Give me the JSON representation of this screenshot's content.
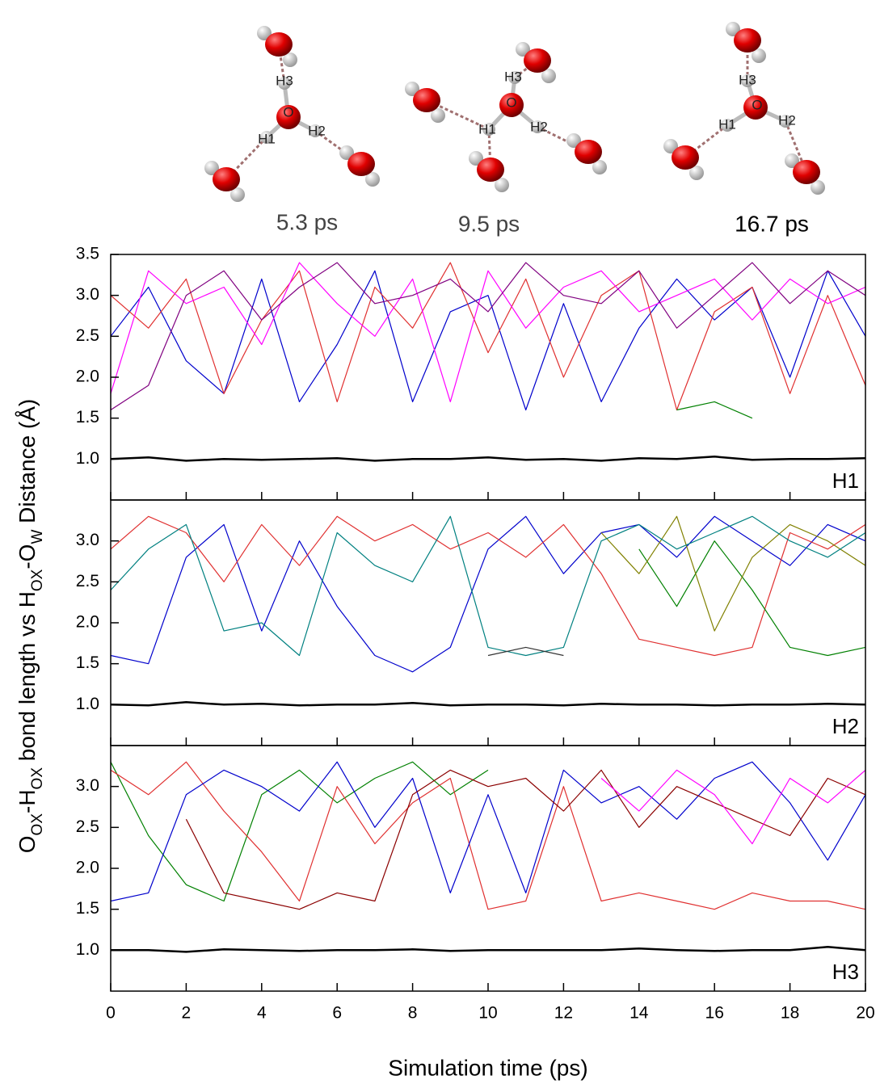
{
  "snapshots": [
    {
      "time": "5.3 ps",
      "labels": [
        "O",
        "H1",
        "H2",
        "H3"
      ]
    },
    {
      "time": "9.5 ps",
      "labels": [
        "O",
        "H1",
        "H2",
        "H3"
      ]
    },
    {
      "time": "16.7 ps",
      "labels": [
        "O",
        "H1",
        "H2",
        "H3"
      ]
    }
  ],
  "chart_data": [
    {
      "type": "line",
      "panel_label": "H1",
      "ylabel": [
        "O",
        "OX",
        "-H",
        "OX",
        " bond length vs H",
        "OX",
        "-O",
        "W",
        " Distance (Å)"
      ],
      "x": [
        0,
        1,
        2,
        3,
        4,
        5,
        6,
        7,
        8,
        9,
        10,
        11,
        12,
        13,
        14,
        15,
        16,
        17,
        18,
        19,
        20
      ],
      "xlim": [
        0,
        20
      ],
      "ylim": [
        0.5,
        3.5
      ],
      "yticks": [
        {
          "value": 1,
          "label": "1.0"
        },
        1.5,
        {
          "value": 2,
          "label": "2.0"
        },
        2.5,
        {
          "value": 3,
          "label": "3.0"
        },
        3.5
      ],
      "series": [
        {
          "color": "#0000cc",
          "values": [
            2.5,
            3.1,
            2.2,
            1.8,
            3.2,
            1.7,
            2.4,
            3.3,
            1.7,
            2.8,
            3.0,
            1.6,
            2.9,
            1.7,
            2.6,
            3.2,
            2.7,
            3.1,
            2.0,
            3.3,
            2.5
          ]
        },
        {
          "color": "#e03030",
          "values": [
            3.0,
            2.6,
            3.2,
            1.8,
            2.7,
            3.3,
            1.7,
            3.1,
            2.6,
            3.4,
            2.3,
            3.2,
            2.0,
            3.0,
            3.3,
            1.6,
            2.8,
            3.1,
            1.8,
            3.0,
            1.9
          ]
        },
        {
          "color": "#ff00ff",
          "values": [
            1.8,
            3.3,
            2.9,
            3.1,
            2.4,
            3.4,
            2.9,
            2.5,
            3.2,
            1.7,
            3.3,
            2.6,
            3.1,
            3.3,
            2.8,
            3.0,
            3.2,
            2.7,
            3.2,
            2.9,
            3.1
          ]
        },
        {
          "color": "#800080",
          "values": [
            1.6,
            1.9,
            3.0,
            3.3,
            2.7,
            3.1,
            3.4,
            2.9,
            3.0,
            3.2,
            2.8,
            3.4,
            3.0,
            2.9,
            3.3,
            2.6,
            3.0,
            3.4,
            2.9,
            3.3,
            3.0
          ]
        },
        {
          "color": "#008000",
          "values": [
            null,
            null,
            null,
            null,
            null,
            null,
            null,
            null,
            null,
            null,
            null,
            null,
            null,
            null,
            null,
            1.6,
            1.7,
            1.5,
            null,
            null,
            null
          ]
        },
        {
          "color": "#000000",
          "values": [
            1.0,
            1.02,
            0.98,
            1.0,
            0.99,
            1.0,
            1.01,
            0.98,
            1.0,
            1.0,
            1.02,
            0.99,
            1.0,
            0.98,
            1.01,
            1.0,
            1.03,
            0.99,
            1.0,
            1.0,
            1.01
          ]
        }
      ]
    },
    {
      "type": "line",
      "panel_label": "H2",
      "x": [
        0,
        1,
        2,
        3,
        4,
        5,
        6,
        7,
        8,
        9,
        10,
        11,
        12,
        13,
        14,
        15,
        16,
        17,
        18,
        19,
        20
      ],
      "xlim": [
        0,
        20
      ],
      "ylim": [
        0.5,
        3.5
      ],
      "yticks": [
        {
          "value": 1,
          "label": "1.0"
        },
        1.5,
        {
          "value": 2,
          "label": "2.0"
        },
        2.5,
        {
          "value": 3,
          "label": "3.0"
        }
      ],
      "series": [
        {
          "color": "#0000cc",
          "values": [
            1.6,
            1.5,
            2.8,
            3.2,
            1.9,
            3.0,
            2.2,
            1.6,
            1.4,
            1.7,
            2.9,
            3.3,
            2.6,
            3.1,
            3.2,
            2.8,
            3.3,
            3.0,
            2.7,
            3.2,
            3.0
          ]
        },
        {
          "color": "#e03030",
          "values": [
            2.9,
            3.3,
            3.1,
            2.5,
            3.2,
            2.7,
            3.3,
            3.0,
            3.2,
            2.9,
            3.1,
            2.8,
            3.2,
            2.6,
            1.8,
            1.7,
            1.6,
            1.7,
            3.1,
            2.9,
            3.2
          ]
        },
        {
          "color": "#008000",
          "values": [
            null,
            null,
            null,
            null,
            null,
            null,
            null,
            null,
            null,
            null,
            null,
            null,
            null,
            null,
            2.9,
            2.2,
            3.0,
            2.4,
            1.7,
            1.6,
            1.7
          ]
        },
        {
          "color": "#808000",
          "values": [
            null,
            null,
            null,
            null,
            null,
            null,
            null,
            null,
            null,
            null,
            null,
            null,
            null,
            3.1,
            2.6,
            3.3,
            1.9,
            2.8,
            3.2,
            3.0,
            2.7
          ]
        },
        {
          "color": "#008080",
          "values": [
            2.4,
            2.9,
            3.2,
            1.9,
            2.0,
            1.6,
            3.1,
            2.7,
            2.5,
            3.3,
            1.7,
            1.6,
            1.7,
            3.0,
            3.2,
            2.9,
            3.1,
            3.3,
            3.0,
            2.8,
            3.1
          ]
        },
        {
          "color": "#333333",
          "values": [
            null,
            null,
            null,
            null,
            null,
            null,
            null,
            null,
            null,
            null,
            1.6,
            1.7,
            1.6,
            null,
            null,
            null,
            null,
            null,
            null,
            null,
            null
          ]
        },
        {
          "color": "#000000",
          "values": [
            1.0,
            0.99,
            1.03,
            1.0,
            1.01,
            0.99,
            1.0,
            1.0,
            1.02,
            0.99,
            1.0,
            1.0,
            0.99,
            1.01,
            1.0,
            1.0,
            0.99,
            1.0,
            1.0,
            1.01,
            1.0
          ]
        }
      ]
    },
    {
      "type": "line",
      "panel_label": "H3",
      "xlabel": "Simulation time (ps)",
      "x": [
        0,
        1,
        2,
        3,
        4,
        5,
        6,
        7,
        8,
        9,
        10,
        11,
        12,
        13,
        14,
        15,
        16,
        17,
        18,
        19,
        20
      ],
      "xlim": [
        0,
        20
      ],
      "ylim": [
        0.5,
        3.5
      ],
      "xticks": [
        0,
        2,
        4,
        6,
        8,
        10,
        12,
        14,
        16,
        18,
        20
      ],
      "yticks": [
        {
          "value": 1,
          "label": "1.0"
        },
        1.5,
        {
          "value": 2,
          "label": "2.0"
        },
        2.5,
        {
          "value": 3,
          "label": "3.0"
        }
      ],
      "series": [
        {
          "color": "#008000",
          "values": [
            3.3,
            2.4,
            1.8,
            1.6,
            2.9,
            3.2,
            2.8,
            3.1,
            3.3,
            2.9,
            3.2,
            null,
            null,
            null,
            null,
            null,
            null,
            null,
            null,
            null,
            null
          ]
        },
        {
          "color": "#e03030",
          "values": [
            3.2,
            2.9,
            3.3,
            2.7,
            2.2,
            1.6,
            3.0,
            2.3,
            2.8,
            3.1,
            1.5,
            1.6,
            3.0,
            1.6,
            1.7,
            1.6,
            1.5,
            1.7,
            1.6,
            1.6,
            1.5
          ]
        },
        {
          "color": "#0000cc",
          "values": [
            1.6,
            1.7,
            2.9,
            3.2,
            3.0,
            2.7,
            3.3,
            2.5,
            3.1,
            1.7,
            2.9,
            1.7,
            3.2,
            2.8,
            3.0,
            2.6,
            3.1,
            3.3,
            2.8,
            2.1,
            2.9
          ]
        },
        {
          "color": "#8b0000",
          "values": [
            null,
            null,
            2.6,
            1.7,
            1.6,
            1.5,
            1.7,
            1.6,
            2.9,
            3.2,
            3.0,
            3.1,
            2.7,
            3.2,
            2.5,
            3.0,
            2.8,
            2.6,
            2.4,
            3.1,
            2.9
          ]
        },
        {
          "color": "#ff00ff",
          "values": [
            null,
            null,
            null,
            null,
            null,
            null,
            null,
            null,
            null,
            null,
            null,
            null,
            null,
            3.1,
            2.7,
            3.2,
            2.9,
            2.3,
            3.1,
            2.8,
            3.2
          ]
        },
        {
          "color": "#000000",
          "values": [
            1.0,
            1.0,
            0.98,
            1.01,
            1.0,
            0.99,
            1.0,
            1.0,
            1.01,
            0.99,
            1.0,
            1.0,
            1.0,
            1.0,
            1.02,
            1.0,
            0.99,
            1.0,
            1.0,
            1.04,
            1.0
          ]
        }
      ]
    }
  ]
}
